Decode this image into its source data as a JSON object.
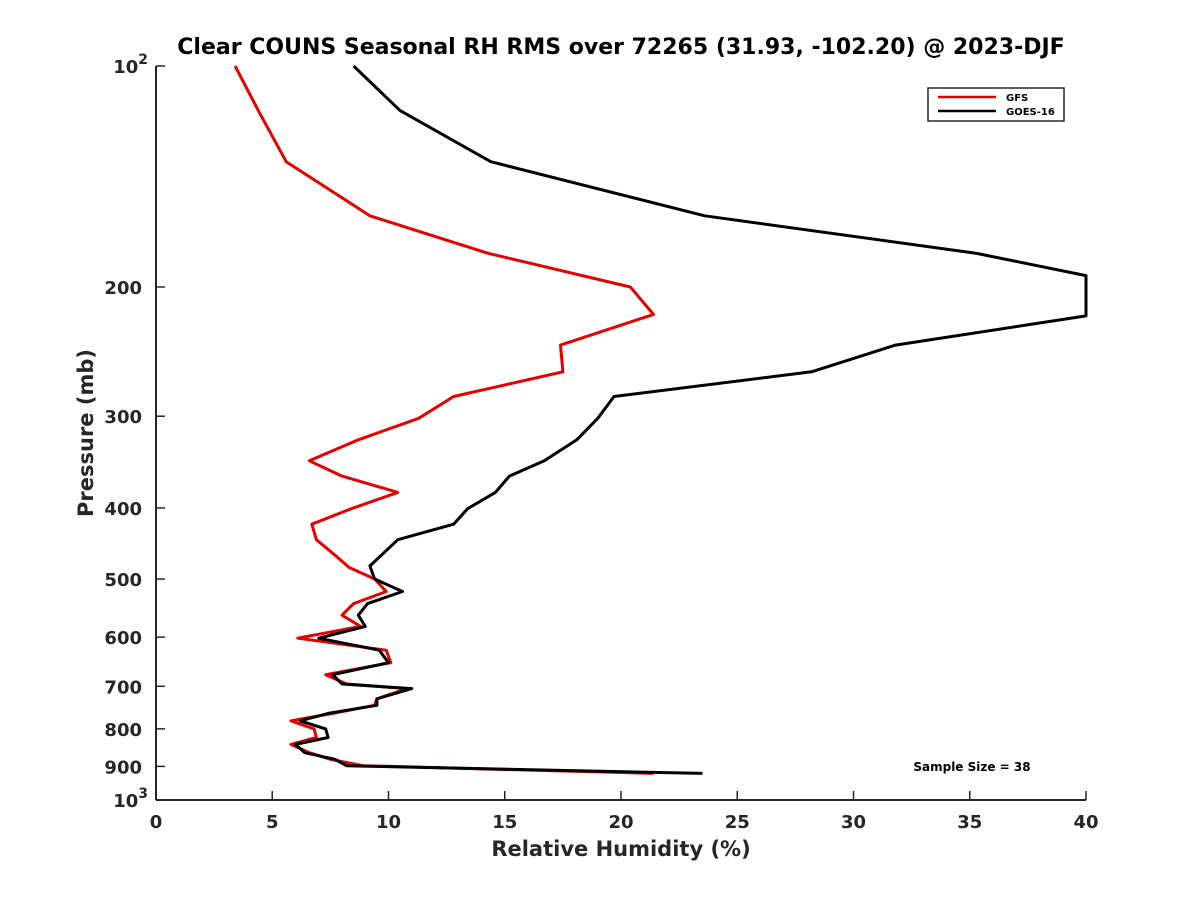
{
  "chart_data": {
    "type": "line",
    "title": "Clear COUNS Seasonal RH RMS over 72265 (31.93, -102.20) @ 2023-DJF",
    "xlabel": "Relative Humidity (%)",
    "ylabel": "Pressure (mb)",
    "xlim": [
      0,
      40
    ],
    "ylim": [
      100,
      1000
    ],
    "y_scale": "log",
    "y_reversed": true,
    "x_ticks": [
      0,
      5,
      10,
      15,
      20,
      25,
      30,
      35,
      40
    ],
    "x_tick_labels": [
      "0",
      "5",
      "10",
      "15",
      "20",
      "25",
      "30",
      "35",
      "40"
    ],
    "y_ticks": [
      100,
      200,
      300,
      400,
      500,
      600,
      700,
      800,
      900,
      1000
    ],
    "y_tick_labels": [
      {
        "base": "10",
        "exp": "2"
      },
      {
        "base": "200"
      },
      {
        "base": "300"
      },
      {
        "base": "400"
      },
      {
        "base": "500"
      },
      {
        "base": "600"
      },
      {
        "base": "700"
      },
      {
        "base": "800"
      },
      {
        "base": "900"
      },
      {
        "base": "10",
        "exp": "3"
      }
    ],
    "legend_location": "top-right",
    "annotation": "Sample Size = 38",
    "series": [
      {
        "name": "GFS",
        "color": "#e60000",
        "points": [
          [
            3.4,
            100
          ],
          [
            4.4,
            115
          ],
          [
            5.6,
            135
          ],
          [
            9.2,
            160
          ],
          [
            14.3,
            180
          ],
          [
            20.4,
            200
          ],
          [
            21.4,
            218
          ],
          [
            17.4,
            240
          ],
          [
            17.5,
            261
          ],
          [
            12.8,
            282
          ],
          [
            11.3,
            302
          ],
          [
            8.7,
            323
          ],
          [
            6.6,
            345
          ],
          [
            8.0,
            362
          ],
          [
            10.4,
            381
          ],
          [
            8.4,
            401
          ],
          [
            6.7,
            421
          ],
          [
            6.9,
            442
          ],
          [
            7.7,
            464
          ],
          [
            8.3,
            482
          ],
          [
            9.4,
            500
          ],
          [
            9.9,
            520
          ],
          [
            8.5,
            540
          ],
          [
            8.0,
            560
          ],
          [
            8.8,
            580
          ],
          [
            6.1,
            602
          ],
          [
            9.9,
            625
          ],
          [
            10.1,
            650
          ],
          [
            7.3,
            675
          ],
          [
            8.2,
            695
          ],
          [
            10.8,
            705
          ],
          [
            9.5,
            728
          ],
          [
            9.4,
            743
          ],
          [
            7.6,
            762
          ],
          [
            5.8,
            780
          ],
          [
            6.8,
            800
          ],
          [
            6.9,
            822
          ],
          [
            5.8,
            840
          ],
          [
            6.6,
            862
          ],
          [
            7.5,
            880
          ],
          [
            8.9,
            898
          ],
          [
            21.4,
            920
          ]
        ]
      },
      {
        "name": "GOES-16",
        "color": "#000000",
        "points": [
          [
            8.5,
            100
          ],
          [
            10.5,
            115
          ],
          [
            14.4,
            135
          ],
          [
            23.6,
            160
          ],
          [
            35.3,
            180
          ],
          [
            40.0,
            193
          ],
          [
            40.0,
            219
          ],
          [
            31.8,
            240
          ],
          [
            28.2,
            261
          ],
          [
            19.7,
            282
          ],
          [
            19.0,
            302
          ],
          [
            18.1,
            323
          ],
          [
            16.7,
            345
          ],
          [
            15.2,
            362
          ],
          [
            14.6,
            381
          ],
          [
            13.4,
            401
          ],
          [
            12.8,
            421
          ],
          [
            10.4,
            442
          ],
          [
            9.2,
            480
          ],
          [
            9.4,
            500
          ],
          [
            10.6,
            520
          ],
          [
            9.1,
            540
          ],
          [
            8.7,
            560
          ],
          [
            9.0,
            580
          ],
          [
            7.0,
            602
          ],
          [
            9.6,
            625
          ],
          [
            10.0,
            650
          ],
          [
            7.6,
            675
          ],
          [
            8.0,
            695
          ],
          [
            11.0,
            705
          ],
          [
            9.5,
            728
          ],
          [
            9.5,
            743
          ],
          [
            7.4,
            762
          ],
          [
            6.2,
            780
          ],
          [
            7.3,
            800
          ],
          [
            7.4,
            822
          ],
          [
            6.0,
            840
          ],
          [
            6.4,
            862
          ],
          [
            7.7,
            880
          ],
          [
            8.2,
            898
          ],
          [
            23.5,
            920
          ]
        ]
      }
    ]
  }
}
